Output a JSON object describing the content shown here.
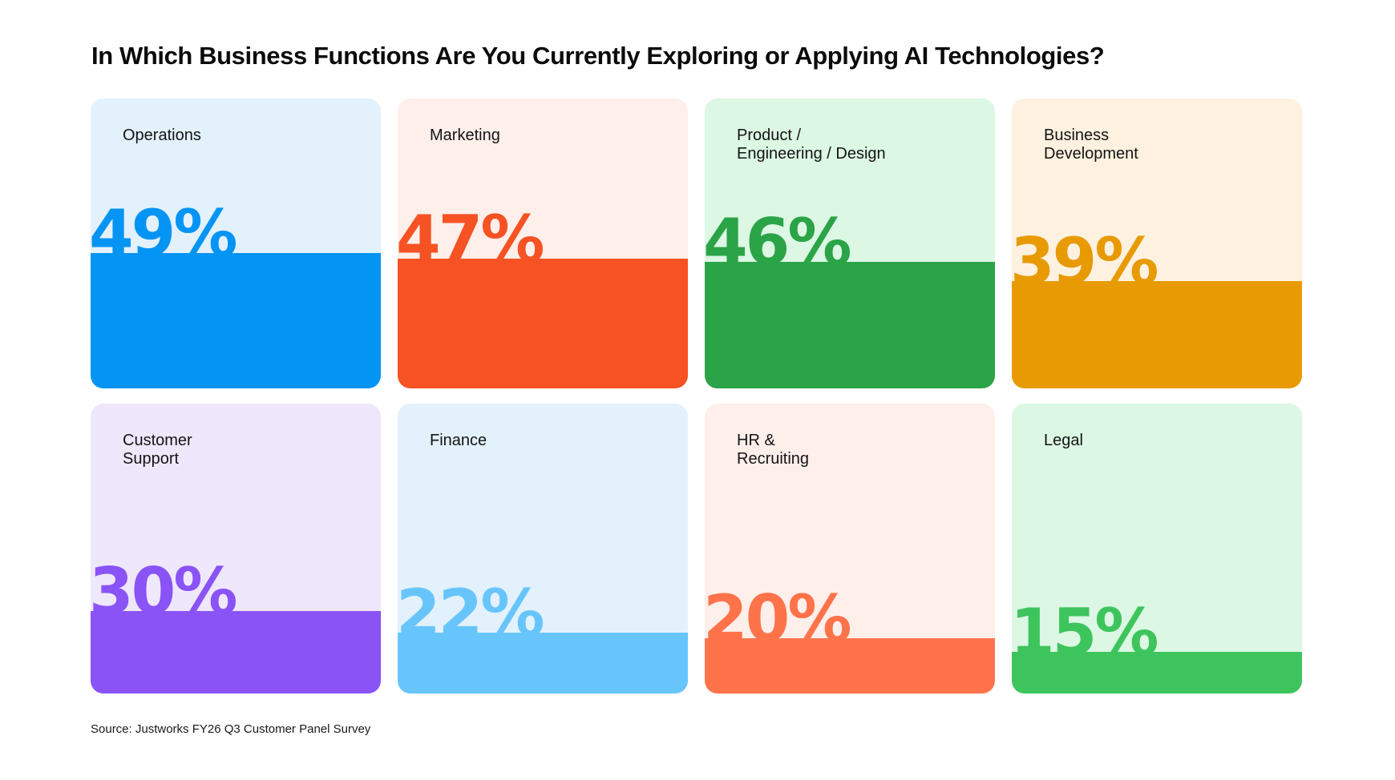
{
  "title": "In Which Business Functions Are You Currently Exploring or Applying AI Technologies?",
  "source": "Source: Justworks FY26 Q3 Customer Panel Survey",
  "chart_data": {
    "type": "bar",
    "title": "In Which Business Functions Are You Currently Exploring or Applying AI Technologies?",
    "ylim": [
      0,
      100
    ],
    "unit": "%",
    "items": [
      {
        "label": "Operations",
        "value": 49,
        "display": "49%",
        "bg": "#e3f1fc",
        "fill": "#0394f4",
        "text": "#0394f4"
      },
      {
        "label": "Marketing",
        "value": 47,
        "display": "47%",
        "bg": "#feefeb",
        "fill": "#f65223",
        "text": "#f65223"
      },
      {
        "label": "Product /\nEngineering / Design",
        "value": 46,
        "display": "46%",
        "bg": "#dcf7e4",
        "fill": "#2ba347",
        "text": "#2ba347"
      },
      {
        "label": "Business\nDevelopment",
        "value": 39,
        "display": "39%",
        "bg": "#fef1e0",
        "fill": "#e89a03",
        "text": "#e89a03"
      },
      {
        "label": "Customer\nSupport",
        "value": 30,
        "display": "30%",
        "bg": "#efe7fc",
        "fill": "#8a53f6",
        "text": "#8a53f6"
      },
      {
        "label": "Finance",
        "value": 22,
        "display": "22%",
        "bg": "#e3f1fc",
        "fill": "#68c5fc",
        "text": "#68c5fc"
      },
      {
        "label": "HR &\nRecruiting",
        "value": 20,
        "display": "20%",
        "bg": "#feefeb",
        "fill": "#ff734a",
        "text": "#ff734a"
      },
      {
        "label": "Legal",
        "value": 15,
        "display": "15%",
        "bg": "#dcf7e4",
        "fill": "#3ec45c",
        "text": "#3ec45c"
      }
    ]
  }
}
